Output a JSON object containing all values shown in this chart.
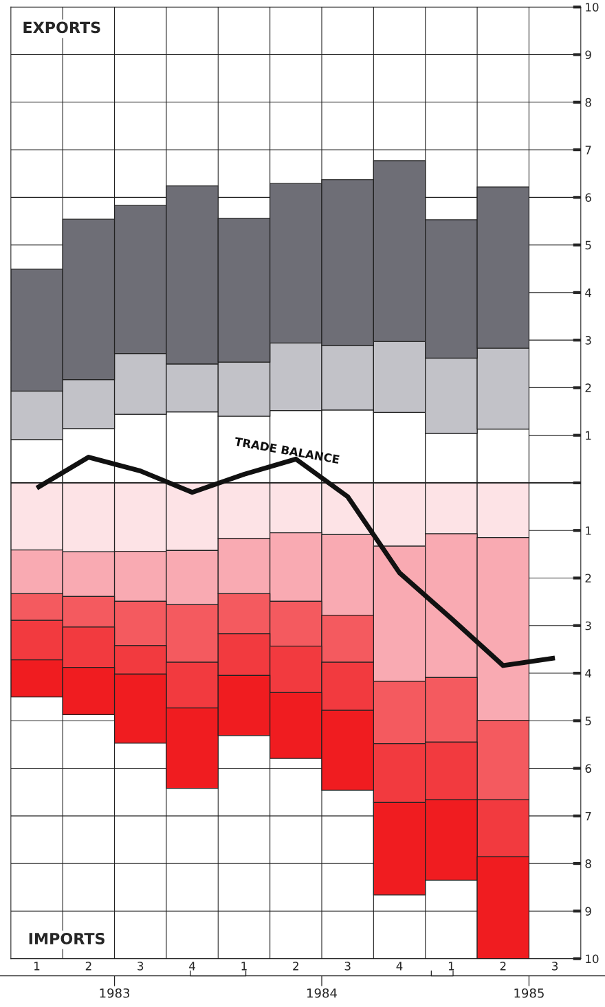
{
  "chart_data": {
    "type": "bar",
    "stacked": true,
    "categories": [
      "1",
      "2",
      "3",
      "4",
      "1",
      "2",
      "3",
      "4",
      "1",
      "2",
      "3"
    ],
    "series": [
      {
        "color": "#ffffff",
        "values": [
          0.91,
          1.14,
          1.44,
          1.49,
          1.4,
          1.52,
          1.53,
          1.48,
          1.04,
          1.13,
          null
        ]
      },
      {
        "color": "#c2c2c8",
        "values": [
          1.02,
          1.03,
          1.28,
          1.01,
          1.14,
          1.42,
          1.36,
          1.49,
          1.58,
          1.7,
          null
        ]
      },
      {
        "color": "#6e6e76",
        "values": [
          2.56,
          3.37,
          3.11,
          3.74,
          3.02,
          3.35,
          3.48,
          3.8,
          2.91,
          3.39,
          null
        ]
      },
      {
        "color": "#fde3e6",
        "values": [
          -1.41,
          -1.45,
          -1.44,
          -1.42,
          -1.17,
          -1.05,
          -1.09,
          -1.33,
          -1.07,
          -1.15,
          null
        ]
      },
      {
        "color": "#f9aab2",
        "values": [
          -0.92,
          -0.94,
          -1.05,
          -1.14,
          -1.16,
          -1.44,
          -1.69,
          -2.84,
          -3.02,
          -3.84,
          null
        ]
      },
      {
        "color": "#f45a5f",
        "values": [
          -0.56,
          -0.64,
          -0.93,
          -1.21,
          -0.84,
          -0.94,
          -0.99,
          -1.31,
          -1.36,
          -1.67,
          null
        ]
      },
      {
        "color": "#f23a3f",
        "values": [
          -0.83,
          -0.85,
          -0.6,
          -0.96,
          -0.88,
          -0.98,
          -1.01,
          -1.24,
          -1.21,
          -1.2,
          null
        ]
      },
      {
        "color": "#f01c20",
        "values": [
          -0.78,
          -0.99,
          -1.45,
          -1.69,
          -1.26,
          -1.38,
          -1.68,
          -1.94,
          -1.69,
          -2.14,
          null
        ]
      },
      {
        "type": "line",
        "name": "TRADE BALANCE",
        "color": "#111111",
        "values": [
          -0.11,
          0.54,
          0.25,
          -0.2,
          0.18,
          0.5,
          -0.29,
          -1.89,
          -2.85,
          -3.84,
          -3.68
        ]
      }
    ],
    "ylim": [
      -10,
      10
    ],
    "yticks": [
      {
        "value": -10,
        "label": "10"
      },
      {
        "value": -9,
        "label": "9"
      },
      {
        "value": -8,
        "label": "8"
      },
      {
        "value": -7,
        "label": "7"
      },
      {
        "value": -6,
        "label": "6"
      },
      {
        "value": -5,
        "label": "5"
      },
      {
        "value": -4,
        "label": "4"
      },
      {
        "value": -3,
        "label": "3"
      },
      {
        "value": -2,
        "label": "2"
      },
      {
        "value": -1,
        "label": "1"
      },
      {
        "value": 0,
        "label": null
      },
      1,
      2,
      3,
      4,
      5,
      6,
      7,
      8,
      9,
      10
    ],
    "grid": true,
    "annotations": [
      "EXPORTS",
      "IMPORTS",
      "1983",
      "1984",
      "1985"
    ]
  }
}
